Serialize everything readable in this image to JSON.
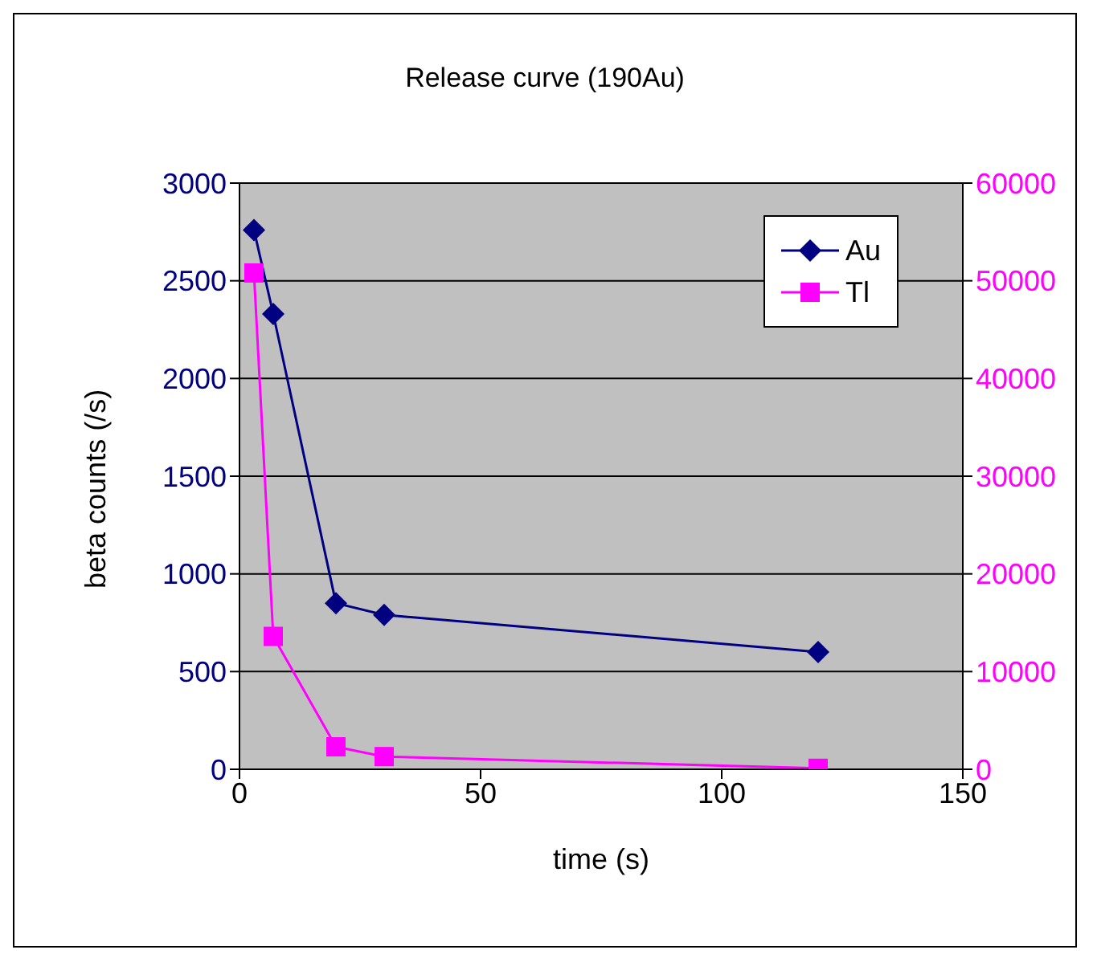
{
  "chart_data": {
    "type": "line",
    "title": "Release curve (190Au)",
    "xlabel": "time (s)",
    "ylabel": "beta counts (/s)",
    "x": [
      3,
      7,
      20,
      30,
      120
    ],
    "series": [
      {
        "name": "Au",
        "color": "#000080",
        "values": [
          2760,
          2330,
          850,
          790,
          600
        ],
        "marker": "diamond"
      },
      {
        "name": "Tl",
        "color": "#ff00ff",
        "values": [
          50800,
          13600,
          2300,
          1300,
          100
        ],
        "axis": "y2",
        "marker": "square"
      }
    ],
    "xlim": [
      0,
      150
    ],
    "xticks": [
      0,
      50,
      100,
      150
    ],
    "ylim": [
      0,
      3000
    ],
    "yticks": [
      0,
      500,
      1000,
      1500,
      2000,
      2500,
      3000
    ],
    "y2lim": [
      0,
      60000
    ],
    "y2ticks": [
      0,
      10000,
      20000,
      30000,
      40000,
      50000,
      60000
    ],
    "grid": "y",
    "legend": "top right"
  }
}
